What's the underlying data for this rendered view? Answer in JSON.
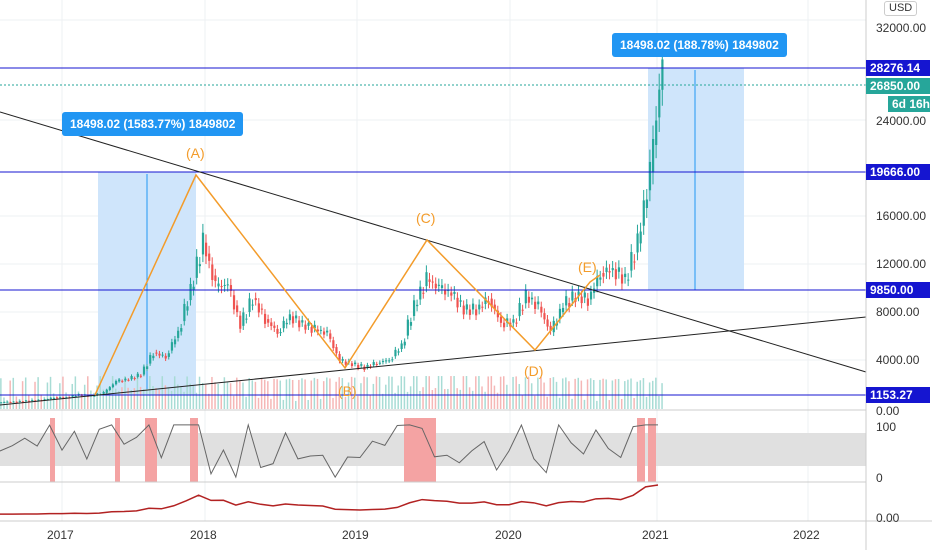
{
  "currency": "USD",
  "price_axis": [
    "32000.00",
    "24000.00",
    "16000.00",
    "12000.00",
    "8000.00",
    "4000.00",
    "0.00"
  ],
  "tags": {
    "high": "28276.14",
    "last": "26850.00",
    "countdown": "6d 16h",
    "level1": "19666.00",
    "level2": "9850.00",
    "level3": "1153.27"
  },
  "rsi_axis": [
    "100",
    "0"
  ],
  "macd_axis": "0.00",
  "time_axis": [
    "2017",
    "2018",
    "2019",
    "2020",
    "2021",
    "2022"
  ],
  "measure_left": "18498.02 (1583.77%) 1849802",
  "measure_right": "18498.02 (188.78%) 1849802",
  "waves": [
    "(A)",
    "(B)",
    "(C)",
    "(D)",
    "(E)"
  ],
  "colors": {
    "up": "#26a69a",
    "down": "#ef5350",
    "level": "#1515d0",
    "wave": "#f39c2b",
    "measure": "#2196f3"
  },
  "chart_data": {
    "type": "candlestick",
    "start": "2016-08",
    "interval": "month",
    "closes": [
      575,
      610,
      700,
      740,
      960,
      970,
      1190,
      1080,
      1350,
      2300,
      2480,
      2870,
      4700,
      4340,
      6450,
      9950,
      13860,
      10220,
      10330,
      6930,
      9240,
      7490,
      6400,
      7730,
      7030,
      6625,
      6300,
      4020,
      3740,
      3460,
      3850,
      4100,
      5300,
      8570,
      10800,
      10080,
      9590,
      8290,
      8300,
      9200,
      7190,
      7200,
      9350,
      8520,
      6400,
      8630,
      9450,
      9130,
      11330,
      11650,
      10780,
      13800,
      19700,
      28900
    ]
  }
}
